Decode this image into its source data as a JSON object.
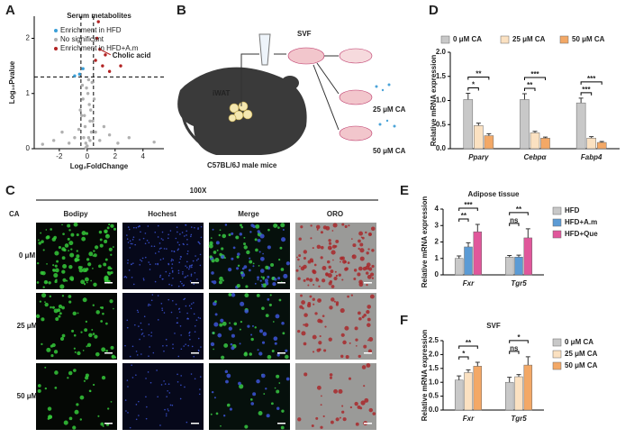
{
  "panels": {
    "labels": [
      "A",
      "B",
      "C",
      "D",
      "E",
      "F"
    ]
  },
  "chart_data": [
    {
      "type": "scatter",
      "title": "Serum metabolites",
      "xlabel": "Log₂FoldChange",
      "ylabel": "Log₁₀Pvalue",
      "xlim": [
        -3.8,
        5.5
      ],
      "ylim": [
        0,
        2.4
      ],
      "xticks": [
        -2,
        0,
        2,
        4
      ],
      "yticks": [
        0,
        1,
        2
      ],
      "reference_lines": {
        "x": [
          -0.45,
          0.45
        ],
        "y": [
          1.3
        ]
      },
      "annotation": "Cholic acid",
      "series": [
        {
          "name": "Enrichment in HFD",
          "color": "#3a9fd8",
          "x": [
            -0.3,
            -0.55,
            -0.9
          ],
          "values": [
            1.45,
            1.35,
            1.32
          ]
        },
        {
          "name": "No significant",
          "color": "#b0b0b0",
          "x": [
            -0.1,
            0.1,
            0.2,
            -0.2,
            0.3,
            -0.3,
            0.05,
            -0.05,
            0.15,
            -0.15,
            0.25,
            -0.25,
            0.4,
            -0.4,
            0.0,
            0.35,
            -0.35,
            0.6,
            -0.6,
            0.9,
            -0.9,
            1.2,
            -1.3,
            1.6,
            -1.8,
            2.2,
            -2.4,
            3.0,
            4.8,
            -3.2,
            0.5,
            -0.5,
            0.1,
            -0.1,
            0.2
          ],
          "values": [
            0.1,
            0.2,
            0.5,
            0.6,
            0.3,
            0.9,
            1.0,
            1.1,
            0.8,
            0.4,
            0.7,
            0.2,
            0.5,
            0.6,
            0.05,
            1.2,
            1.15,
            0.3,
            0.35,
            0.15,
            0.2,
            0.4,
            0.1,
            0.25,
            0.3,
            0.1,
            0.15,
            0.2,
            0.12,
            0.08,
            0.9,
            0.7,
            1.25,
            0.02,
            0.15
          ]
        },
        {
          "name": "Enrichment in HFD+A.m",
          "color": "#b22222",
          "x": [
            0.6,
            0.9,
            1.1,
            0.8,
            1.3,
            0.7,
            1.6,
            2.4
          ],
          "values": [
            1.6,
            1.8,
            1.5,
            2.3,
            1.7,
            2.0,
            1.4,
            1.5
          ]
        }
      ]
    },
    {
      "type": "bar",
      "ylabel": "Relative mRNA expression",
      "legend": "top",
      "categories": [
        "Pparγ",
        "Cebpα",
        "Fabp4"
      ],
      "ylim": [
        0,
        2
      ],
      "yticks": [
        {
          "value": 0,
          "label": "0.0"
        },
        0.5,
        {
          "value": 1,
          "label": "1.0"
        },
        1.5,
        {
          "value": 2,
          "label": "2.0"
        }
      ],
      "significance": [
        [
          "*",
          "**"
        ],
        [
          "**",
          "***"
        ],
        [
          "***",
          "***"
        ]
      ],
      "series": [
        {
          "name": "0 μM CA",
          "color": "#c8c8c8",
          "values": [
            1.02,
            1.02,
            0.95
          ],
          "errors": [
            0.13,
            0.12,
            0.1
          ]
        },
        {
          "name": "25 μM CA",
          "color": "#fbe1c1",
          "values": [
            0.48,
            0.33,
            0.22
          ],
          "errors": [
            0.05,
            0.03,
            0.03
          ]
        },
        {
          "name": "50 μM CA",
          "color": "#f3a866",
          "values": [
            0.27,
            0.22,
            0.13
          ],
          "errors": [
            0.04,
            0.02,
            0.02
          ]
        }
      ]
    },
    {
      "type": "bar",
      "title": "Adipose tissue",
      "ylabel": "Relative mRNA expression",
      "legend": "right",
      "categories": [
        "Fxr",
        "Tgr5"
      ],
      "ylim": [
        0,
        4
      ],
      "yticks": [
        0,
        1,
        2,
        3,
        4
      ],
      "significance": [
        [
          "**",
          "***"
        ],
        [
          "ns",
          "**"
        ]
      ],
      "series": [
        {
          "name": "HFD",
          "color": "#c8c8c8",
          "values": [
            1.0,
            1.08
          ],
          "errors": [
            0.15,
            0.1
          ]
        },
        {
          "name": "HFD+A.m",
          "color": "#5b9bd5",
          "values": [
            1.7,
            1.08
          ],
          "errors": [
            0.25,
            0.12
          ]
        },
        {
          "name": "HFD+Que",
          "color": "#e0579b",
          "values": [
            2.62,
            2.25
          ],
          "errors": [
            0.45,
            0.55
          ]
        }
      ]
    },
    {
      "type": "bar",
      "title": "SVF",
      "ylabel": "Relative mRNA expression",
      "legend": "right",
      "categories": [
        "Fxr",
        "Tgr5"
      ],
      "ylim": [
        0,
        2.5
      ],
      "yticks": [
        {
          "value": 0,
          "label": "0.0"
        },
        0.5,
        {
          "value": 1,
          "label": "1.0"
        },
        1.5,
        {
          "value": 2,
          "label": "2.0"
        },
        2.5
      ],
      "significance": [
        [
          "*",
          "**"
        ],
        [
          "ns",
          "*"
        ]
      ],
      "series": [
        {
          "name": "0 μM CA",
          "color": "#c8c8c8",
          "values": [
            1.08,
            1.0
          ],
          "errors": [
            0.15,
            0.18
          ]
        },
        {
          "name": "25 μM CA",
          "color": "#fbe1c1",
          "values": [
            1.35,
            1.2
          ],
          "errors": [
            0.1,
            0.08
          ]
        },
        {
          "name": "50 μM CA",
          "color": "#f3a866",
          "values": [
            1.58,
            1.62
          ],
          "errors": [
            0.14,
            0.3
          ]
        }
      ]
    }
  ],
  "diagram": {
    "dish": "SVF",
    "tissue": "iWAT",
    "mouse": "C57BL/6J male mice",
    "dose_low": "25 μM CA",
    "dose_high": "50 μM CA"
  },
  "microscopy": {
    "magnification": "100X",
    "row_header": "CA",
    "columns": [
      "Bodipy",
      "Hochest",
      "Merge",
      "ORO"
    ],
    "rows": [
      "0 μM",
      "25 μM",
      "50 μM"
    ]
  }
}
